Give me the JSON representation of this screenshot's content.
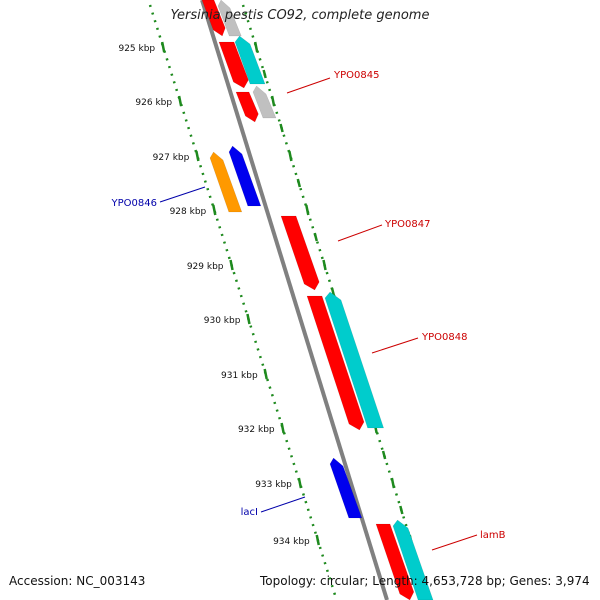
{
  "title": "Yersinia pestis CO92, complete genome",
  "footer": {
    "accession": "Accession: NC_003143",
    "topology": "Topology: circular; Length: 4,653,728 bp; Genes: 3,974"
  },
  "colors": {
    "backbone": "#808080",
    "ruler": "#1e8a1e",
    "red_gene": "#ff0000",
    "cyan_gene": "#00cccc",
    "blue_gene": "#0000ee",
    "orange_gene": "#ff9900",
    "gray_gene": "#c0c0c0",
    "label_red": "#cc0000",
    "label_blue": "#0000aa"
  },
  "ruler": {
    "ticks": [
      "925 kbp",
      "926 kbp",
      "927 kbp",
      "928 kbp",
      "929 kbp",
      "930 kbp",
      "931 kbp",
      "932 kbp",
      "933 kbp",
      "934 kbp"
    ]
  },
  "gene_labels": [
    {
      "text": "YPO0845",
      "color": "red"
    },
    {
      "text": "YPO0846",
      "color": "blue"
    },
    {
      "text": "YPO0847",
      "color": "red"
    },
    {
      "text": "YPO0848",
      "color": "red"
    },
    {
      "text": "lacI",
      "color": "blue"
    },
    {
      "text": "lamB",
      "color": "red"
    }
  ]
}
